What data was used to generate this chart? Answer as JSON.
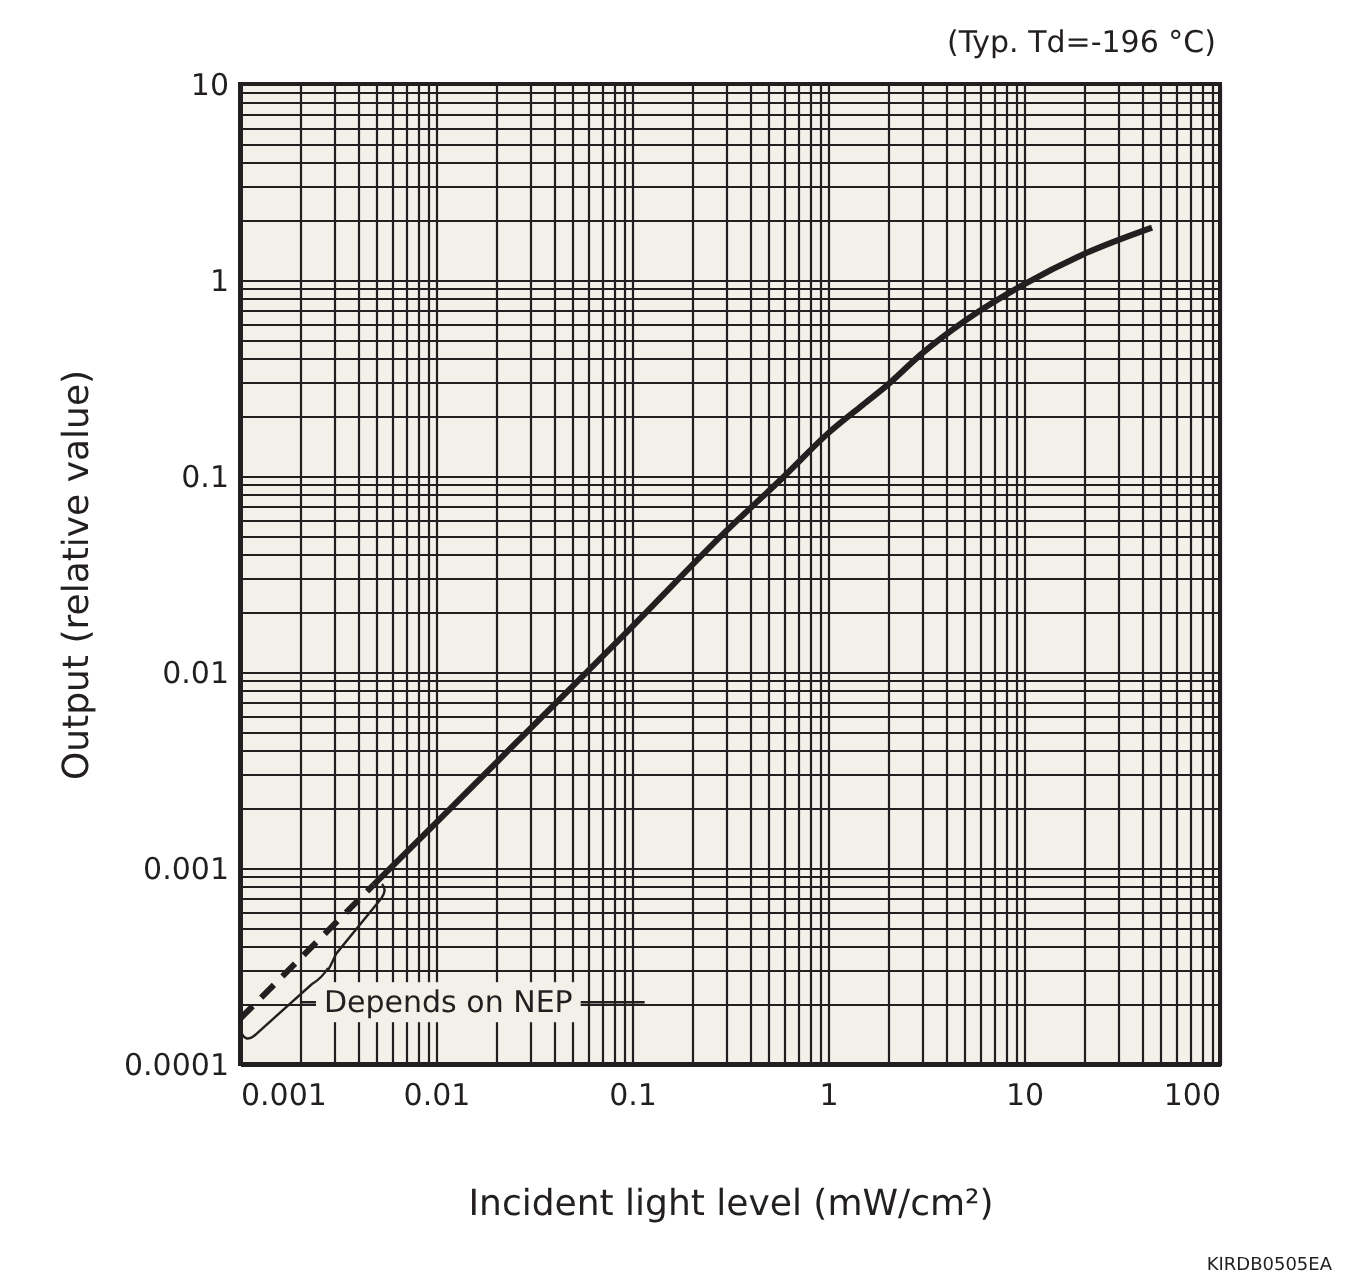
{
  "chart_data": {
    "type": "line",
    "xlabel": "Incident light level (mW/cm²)",
    "ylabel": "Output (relative value)",
    "annotations": [
      "(Typ. Td=-196 °C)",
      "KIRDB0505EA",
      "Depends on NEP"
    ],
    "log": "xy",
    "grid": true,
    "marker": "none",
    "xlim": [
      0.001,
      100
    ],
    "ylim": [
      0.0001,
      10
    ],
    "xticks": [
      0.001,
      {
        "value": 0.002,
        "label": null
      },
      {
        "value": 0.003,
        "label": null
      },
      {
        "value": 0.004,
        "label": null
      },
      {
        "value": 0.005,
        "label": null
      },
      {
        "value": 0.006,
        "label": null
      },
      {
        "value": 0.007,
        "label": null
      },
      {
        "value": 0.008,
        "label": null
      },
      {
        "value": 0.009,
        "label": null
      },
      0.01,
      {
        "value": 0.02,
        "label": null
      },
      {
        "value": 0.03,
        "label": null
      },
      {
        "value": 0.04,
        "label": null
      },
      {
        "value": 0.05,
        "label": null
      },
      {
        "value": 0.06,
        "label": null
      },
      {
        "value": 0.07,
        "label": null
      },
      {
        "value": 0.08,
        "label": null
      },
      {
        "value": 0.09,
        "label": null
      },
      0.1,
      {
        "value": 0.2,
        "label": null
      },
      {
        "value": 0.3,
        "label": null
      },
      {
        "value": 0.4,
        "label": null
      },
      {
        "value": 0.5,
        "label": null
      },
      {
        "value": 0.6,
        "label": null
      },
      {
        "value": 0.7,
        "label": null
      },
      {
        "value": 0.8,
        "label": null
      },
      {
        "value": 0.9,
        "label": null
      },
      1,
      {
        "value": 2,
        "label": null
      },
      {
        "value": 3,
        "label": null
      },
      {
        "value": 4,
        "label": null
      },
      {
        "value": 5,
        "label": null
      },
      {
        "value": 6,
        "label": null
      },
      {
        "value": 7,
        "label": null
      },
      {
        "value": 8,
        "label": null
      },
      {
        "value": 9,
        "label": null
      },
      10,
      {
        "value": 20,
        "label": null
      },
      {
        "value": 30,
        "label": null
      },
      {
        "value": 40,
        "label": null
      },
      {
        "value": 50,
        "label": null
      },
      {
        "value": 60,
        "label": null
      },
      {
        "value": 70,
        "label": null
      },
      {
        "value": 80,
        "label": null
      },
      {
        "value": 90,
        "label": null
      },
      100
    ],
    "yticks": [
      0.0001,
      {
        "value": 0.0002,
        "label": null
      },
      {
        "value": 0.0003,
        "label": null
      },
      {
        "value": 0.0004,
        "label": null
      },
      {
        "value": 0.0005,
        "label": null
      },
      {
        "value": 0.0006,
        "label": null
      },
      {
        "value": 0.0007,
        "label": null
      },
      {
        "value": 0.0008,
        "label": null
      },
      {
        "value": 0.0009,
        "label": null
      },
      0.001,
      {
        "value": 0.002,
        "label": null
      },
      {
        "value": 0.003,
        "label": null
      },
      {
        "value": 0.004,
        "label": null
      },
      {
        "value": 0.005,
        "label": null
      },
      {
        "value": 0.006,
        "label": null
      },
      {
        "value": 0.007,
        "label": null
      },
      {
        "value": 0.008,
        "label": null
      },
      {
        "value": 0.009,
        "label": null
      },
      0.01,
      {
        "value": 0.02,
        "label": null
      },
      {
        "value": 0.03,
        "label": null
      },
      {
        "value": 0.04,
        "label": null
      },
      {
        "value": 0.05,
        "label": null
      },
      {
        "value": 0.06,
        "label": null
      },
      {
        "value": 0.07,
        "label": null
      },
      {
        "value": 0.08,
        "label": null
      },
      {
        "value": 0.09,
        "label": null
      },
      0.1,
      {
        "value": 0.2,
        "label": null
      },
      {
        "value": 0.3,
        "label": null
      },
      {
        "value": 0.4,
        "label": null
      },
      {
        "value": 0.5,
        "label": null
      },
      {
        "value": 0.6,
        "label": null
      },
      {
        "value": 0.7,
        "label": null
      },
      {
        "value": 0.8,
        "label": null
      },
      {
        "value": 0.9,
        "label": null
      },
      1,
      {
        "value": 2,
        "label": null
      },
      {
        "value": 3,
        "label": null
      },
      {
        "value": 4,
        "label": null
      },
      {
        "value": 5,
        "label": null
      },
      {
        "value": 6,
        "label": null
      },
      {
        "value": 7,
        "label": null
      },
      {
        "value": 8,
        "label": null
      },
      {
        "value": 9,
        "label": null
      },
      10
    ],
    "series": [
      {
        "color": "#231f20",
        "line_style": "solid",
        "x": [
          0.0048,
          0.01,
          0.03,
          0.1,
          0.3,
          0.6,
          1,
          1.5,
          2,
          3,
          5,
          10,
          20,
          45
        ],
        "values": [
          0.00082,
          0.0017,
          0.0051,
          0.017,
          0.052,
          0.1,
          0.165,
          0.23,
          0.29,
          0.42,
          0.62,
          0.95,
          1.35,
          1.85
        ]
      },
      {
        "color": "#231f20",
        "line_style": "dashed",
        "x": [
          0.001,
          0.0048
        ],
        "values": [
          0.00017,
          0.00082
        ]
      }
    ]
  }
}
